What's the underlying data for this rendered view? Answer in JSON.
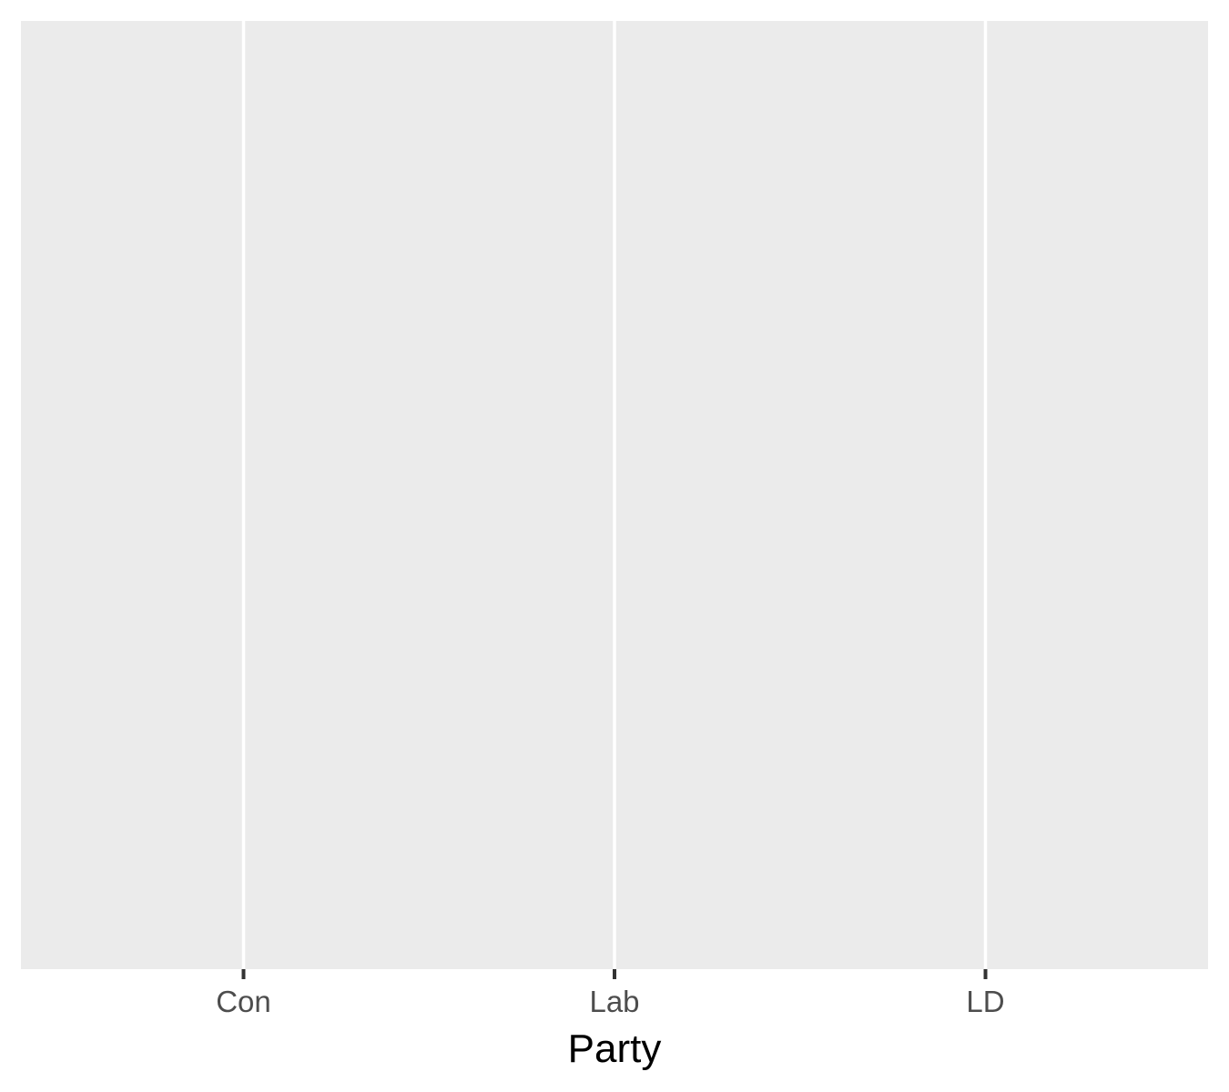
{
  "chart_data": {
    "type": "bar",
    "categories": [
      "Con",
      "Lab",
      "LD"
    ],
    "series": [],
    "xlabel": "Party",
    "ylabel": "",
    "grid": true,
    "panel_background": "#ebebeb",
    "grid_color": "#ffffff",
    "tick_color": "#333333",
    "tick_label_color": "#4d4d4d",
    "axis_title_color": "#000000"
  }
}
